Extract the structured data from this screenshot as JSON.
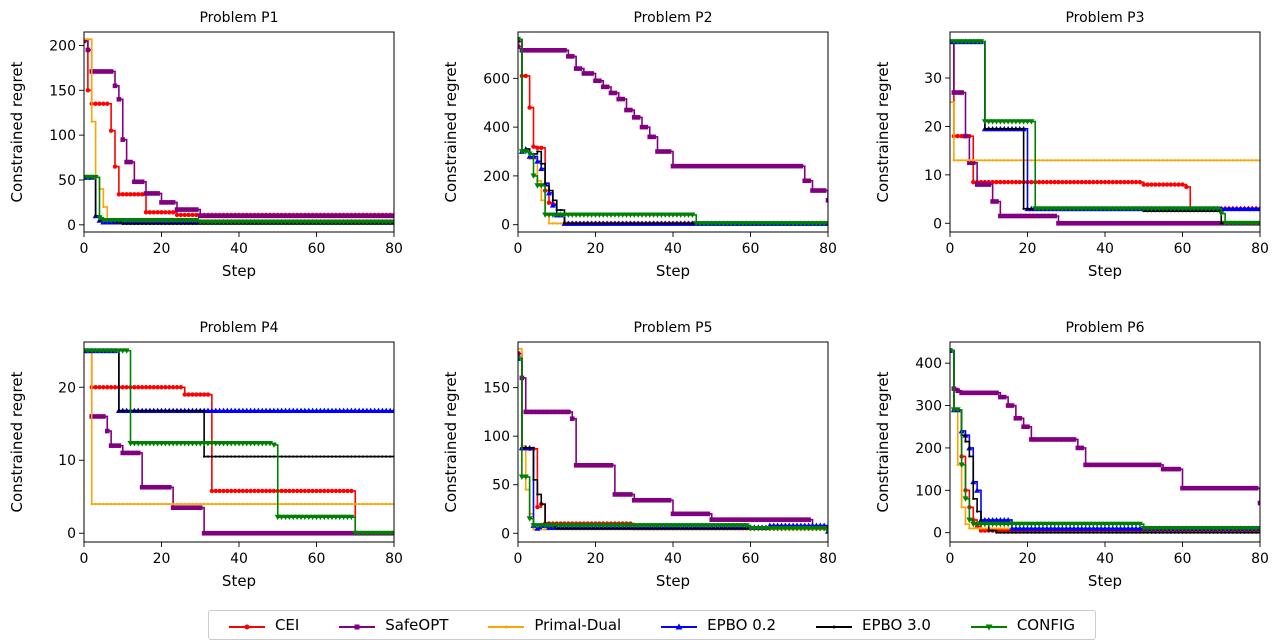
{
  "chart_data": [
    {
      "type": "line",
      "title": "Problem P1",
      "xlabel": "Step",
      "ylabel": "Constrained regret",
      "xlim": [
        0,
        80
      ],
      "ylim": [
        -8,
        215
      ],
      "xticks": [
        0,
        20,
        40,
        60,
        80
      ],
      "yticks": [
        0,
        50,
        100,
        150,
        200
      ],
      "series": [
        {
          "name": "CEI",
          "x": [
            0,
            1,
            2,
            6,
            7,
            8,
            9,
            12,
            16,
            24,
            80
          ],
          "y": [
            205,
            150,
            135,
            135,
            105,
            65,
            34,
            34,
            14,
            11,
            11
          ]
        },
        {
          "name": "SafeOPT",
          "x": [
            0,
            1,
            2,
            7,
            8,
            9,
            10,
            11,
            13,
            16,
            20,
            24,
            30,
            80
          ],
          "y": [
            205,
            195,
            171,
            171,
            155,
            140,
            95,
            70,
            48,
            35,
            25,
            17,
            10,
            10
          ]
        },
        {
          "name": "Primal-Dual",
          "x": [
            0,
            1,
            2,
            3,
            4,
            5,
            6,
            80
          ],
          "y": [
            207,
            207,
            115,
            53,
            40,
            20,
            5,
            5
          ]
        },
        {
          "name": "EPBO 0.2",
          "x": [
            0,
            1,
            2,
            3,
            4,
            5,
            8,
            80
          ],
          "y": [
            53,
            53,
            53,
            10,
            5,
            3,
            3,
            3
          ]
        },
        {
          "name": "EPBO 3.0",
          "x": [
            0,
            1,
            2,
            3,
            4,
            8,
            10,
            80
          ],
          "y": [
            53,
            53,
            53,
            10,
            5,
            3,
            1,
            1
          ]
        },
        {
          "name": "CONFIG",
          "x": [
            0,
            1,
            3,
            4,
            5,
            30,
            80
          ],
          "y": [
            53,
            53,
            53,
            8,
            5,
            3,
            3
          ]
        }
      ]
    },
    {
      "type": "line",
      "title": "Problem P2",
      "xlabel": "Step",
      "ylabel": "Constrained regret",
      "xlim": [
        0,
        80
      ],
      "ylim": [
        -30,
        790
      ],
      "xticks": [
        0,
        20,
        40,
        60,
        80
      ],
      "yticks": [
        0,
        200,
        400,
        600
      ],
      "series": [
        {
          "name": "CEI",
          "x": [
            0,
            1,
            2,
            3,
            4,
            5,
            6,
            7,
            8,
            9,
            10,
            12,
            80
          ],
          "y": [
            750,
            610,
            610,
            480,
            320,
            315,
            315,
            140,
            90,
            85,
            40,
            5,
            5
          ]
        },
        {
          "name": "SafeOPT",
          "x": [
            0,
            1,
            9,
            13,
            15,
            17,
            20,
            22,
            24,
            26,
            28,
            30,
            32,
            34,
            36,
            38,
            40,
            72,
            74,
            76,
            80
          ],
          "y": [
            730,
            715,
            715,
            690,
            640,
            620,
            590,
            565,
            540,
            515,
            470,
            440,
            400,
            360,
            300,
            300,
            240,
            240,
            180,
            140,
            100
          ]
        },
        {
          "name": "Primal-Dual",
          "x": [
            0,
            1,
            3,
            5,
            6,
            7,
            8,
            80
          ],
          "y": [
            760,
            300,
            270,
            180,
            100,
            40,
            5,
            5
          ]
        },
        {
          "name": "EPBO 0.2",
          "x": [
            0,
            1,
            2,
            3,
            5,
            6,
            7,
            8,
            9,
            10,
            12,
            80
          ],
          "y": [
            760,
            300,
            310,
            280,
            260,
            230,
            170,
            130,
            80,
            40,
            5,
            5
          ]
        },
        {
          "name": "EPBO 3.0",
          "x": [
            0,
            1,
            2,
            3,
            5,
            6,
            7,
            8,
            9,
            10,
            12,
            80
          ],
          "y": [
            760,
            300,
            310,
            290,
            300,
            250,
            160,
            140,
            100,
            60,
            5,
            5
          ]
        },
        {
          "name": "CONFIG",
          "x": [
            0,
            1,
            3,
            4,
            5,
            6,
            7,
            45,
            46,
            80
          ],
          "y": [
            760,
            300,
            290,
            200,
            160,
            160,
            40,
            40,
            5,
            5
          ]
        }
      ]
    },
    {
      "type": "line",
      "title": "Problem P3",
      "xlabel": "Step",
      "ylabel": "Constrained regret",
      "xlim": [
        0,
        80
      ],
      "ylim": [
        -1.8,
        39.5
      ],
      "xticks": [
        0,
        20,
        40,
        60,
        80
      ],
      "yticks": [
        0,
        10,
        20,
        30
      ],
      "series": [
        {
          "name": "CEI",
          "x": [
            0,
            1,
            2,
            5,
            6,
            50,
            61,
            62,
            80
          ],
          "y": [
            37.5,
            18,
            18,
            18,
            8.5,
            8,
            7.5,
            3,
            3
          ]
        },
        {
          "name": "SafeOPT",
          "x": [
            0,
            1,
            2,
            4,
            5,
            6,
            7,
            11,
            13,
            16,
            28,
            80
          ],
          "y": [
            37.5,
            27,
            27,
            18,
            12.5,
            12.5,
            8,
            4.5,
            1.5,
            1.5,
            0,
            0
          ]
        },
        {
          "name": "Primal-Dual",
          "x": [
            0,
            1,
            80
          ],
          "y": [
            25,
            13,
            13
          ]
        },
        {
          "name": "EPBO 0.2",
          "x": [
            0,
            8,
            9,
            19,
            20,
            80
          ],
          "y": [
            37.5,
            37.5,
            19.5,
            19.5,
            3,
            3
          ]
        },
        {
          "name": "EPBO 3.0",
          "x": [
            0,
            8,
            9,
            18,
            19,
            45,
            50,
            70,
            80
          ],
          "y": [
            37.5,
            37.5,
            19.5,
            19.5,
            3,
            3,
            2.5,
            0,
            0
          ]
        },
        {
          "name": "CONFIG",
          "x": [
            0,
            8,
            9,
            21,
            22,
            60,
            70,
            71,
            80
          ],
          "y": [
            37.5,
            37.5,
            21,
            21,
            3,
            3,
            2,
            0,
            0
          ]
        }
      ]
    },
    {
      "type": "line",
      "title": "Problem P4",
      "xlabel": "Step",
      "ylabel": "Constrained regret",
      "xlim": [
        0,
        80
      ],
      "ylim": [
        -1.2,
        26.2
      ],
      "xticks": [
        0,
        20,
        40,
        60,
        80
      ],
      "yticks": [
        0,
        10,
        20
      ],
      "series": [
        {
          "name": "CEI",
          "x": [
            0,
            1,
            2,
            25,
            26,
            32,
            33,
            69,
            70,
            80
          ],
          "y": [
            25,
            25,
            20,
            20,
            19,
            19,
            5.8,
            5.8,
            0,
            0
          ]
        },
        {
          "name": "SafeOPT",
          "x": [
            0,
            1,
            2,
            6,
            7,
            9,
            10,
            14,
            15,
            22,
            23,
            30,
            31,
            80
          ],
          "y": [
            25,
            25,
            16,
            14,
            12,
            12,
            11,
            11,
            6.3,
            6.3,
            3.5,
            3.5,
            0,
            0
          ]
        },
        {
          "name": "Primal-Dual",
          "x": [
            0,
            1,
            2,
            80
          ],
          "y": [
            25,
            25,
            4,
            4
          ]
        },
        {
          "name": "EPBO 0.2",
          "x": [
            0,
            8,
            9,
            80
          ],
          "y": [
            25,
            25,
            16.8,
            16.8
          ]
        },
        {
          "name": "EPBO 3.0",
          "x": [
            0,
            8,
            9,
            30,
            31,
            80
          ],
          "y": [
            25,
            25,
            16.8,
            16.8,
            10.5,
            10.5
          ]
        },
        {
          "name": "CONFIG",
          "x": [
            0,
            11,
            12,
            49,
            50,
            70,
            80
          ],
          "y": [
            25,
            25,
            12.3,
            12.1,
            2.2,
            0,
            0
          ]
        }
      ]
    },
    {
      "type": "line",
      "title": "Problem P5",
      "xlabel": "Step",
      "ylabel": "Constrained regret",
      "xlim": [
        0,
        80
      ],
      "ylim": [
        -9,
        197
      ],
      "xticks": [
        0,
        20,
        40,
        60,
        80
      ],
      "yticks": [
        0,
        50,
        100,
        150
      ],
      "series": [
        {
          "name": "CEI",
          "x": [
            0,
            1,
            4,
            5,
            6,
            7,
            8,
            15,
            30,
            80
          ],
          "y": [
            185,
            87,
            87,
            27,
            30,
            10,
            10,
            10,
            5,
            5
          ]
        },
        {
          "name": "SafeOPT",
          "x": [
            0,
            1,
            2,
            12,
            14,
            15,
            19,
            25,
            30,
            40,
            50,
            76,
            80
          ],
          "y": [
            185,
            160,
            125,
            125,
            118,
            70,
            70,
            40,
            34,
            20,
            14,
            6,
            6
          ]
        },
        {
          "name": "Primal-Dual",
          "x": [
            0,
            1,
            2,
            3,
            4,
            40,
            80
          ],
          "y": [
            190,
            90,
            45,
            20,
            4,
            4,
            4
          ]
        },
        {
          "name": "EPBO 0.2",
          "x": [
            0,
            1,
            2,
            3,
            4,
            5,
            6,
            7,
            8,
            65,
            80
          ],
          "y": [
            180,
            88,
            88,
            88,
            8,
            5,
            8,
            8,
            6,
            8,
            2
          ]
        },
        {
          "name": "EPBO 3.0",
          "x": [
            0,
            1,
            2,
            3,
            4,
            5,
            6,
            7,
            8,
            9,
            10,
            80
          ],
          "y": [
            180,
            88,
            88,
            88,
            55,
            40,
            30,
            10,
            8,
            7,
            5,
            3
          ]
        },
        {
          "name": "CONFIG",
          "x": [
            0,
            1,
            2,
            3,
            4,
            60,
            80
          ],
          "y": [
            180,
            58,
            58,
            15,
            8,
            5,
            2
          ]
        }
      ]
    },
    {
      "type": "line",
      "title": "Problem P6",
      "xlabel": "Step",
      "ylabel": "Constrained regret",
      "xlim": [
        0,
        80
      ],
      "ylim": [
        -22,
        450
      ],
      "xticks": [
        0,
        20,
        40,
        60,
        80
      ],
      "yticks": [
        0,
        100,
        200,
        300,
        400
      ],
      "series": [
        {
          "name": "CEI",
          "x": [
            0,
            1,
            2,
            3,
            4,
            5,
            6,
            7,
            8,
            80
          ],
          "y": [
            430,
            290,
            290,
            180,
            100,
            60,
            30,
            15,
            5,
            5
          ]
        },
        {
          "name": "SafeOPT",
          "x": [
            0,
            1,
            2,
            3,
            12,
            13,
            15,
            17,
            19,
            21,
            30,
            33,
            35,
            40,
            50,
            55,
            58,
            60,
            79,
            80
          ],
          "y": [
            430,
            340,
            335,
            330,
            330,
            320,
            300,
            270,
            250,
            220,
            220,
            200,
            160,
            160,
            160,
            150,
            150,
            105,
            105,
            70
          ]
        },
        {
          "name": "Primal-Dual",
          "x": [
            0,
            1,
            2,
            3,
            4,
            5,
            80
          ],
          "y": [
            430,
            290,
            160,
            60,
            20,
            10,
            10
          ]
        },
        {
          "name": "EPBO 0.2",
          "x": [
            0,
            1,
            2,
            3,
            4,
            5,
            6,
            7,
            8,
            15,
            16,
            80
          ],
          "y": [
            430,
            290,
            290,
            240,
            230,
            200,
            120,
            100,
            30,
            30,
            10,
            10
          ]
        },
        {
          "name": "EPBO 3.0",
          "x": [
            0,
            1,
            2,
            3,
            4,
            5,
            6,
            7,
            8,
            10,
            12,
            80
          ],
          "y": [
            430,
            290,
            290,
            230,
            215,
            180,
            80,
            50,
            20,
            5,
            0,
            0
          ]
        },
        {
          "name": "CONFIG",
          "x": [
            0,
            1,
            2,
            3,
            4,
            5,
            6,
            30,
            50,
            80
          ],
          "y": [
            430,
            290,
            290,
            160,
            80,
            30,
            20,
            20,
            10,
            10
          ]
        }
      ]
    }
  ],
  "legend": [
    {
      "name": "CEI",
      "color": "#ff0000",
      "marker": "circle"
    },
    {
      "name": "SafeOPT",
      "color": "#800080",
      "marker": "square"
    },
    {
      "name": "Primal-Dual",
      "color": "#ffa500",
      "marker": "dot"
    },
    {
      "name": "EPBO 0.2",
      "color": "#0000ff",
      "marker": "triangle-up"
    },
    {
      "name": "EPBO 3.0",
      "color": "#000000",
      "marker": "dot"
    },
    {
      "name": "CONFIG",
      "color": "#008000",
      "marker": "triangle-down"
    }
  ]
}
